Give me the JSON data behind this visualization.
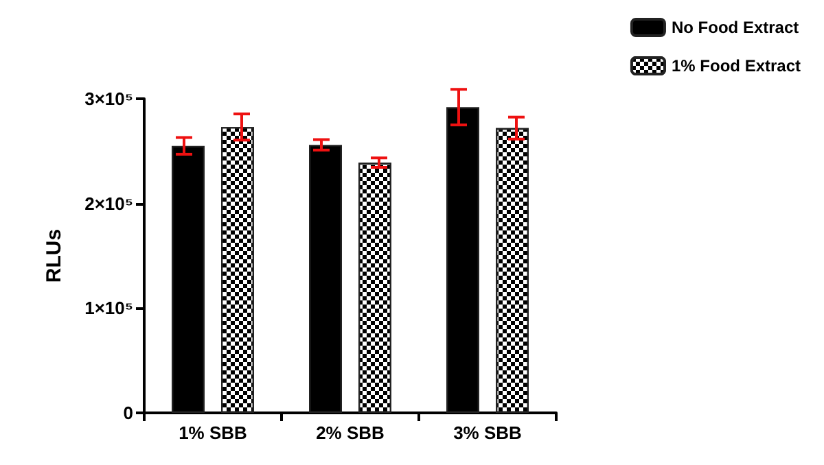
{
  "chart_data": {
    "type": "bar",
    "ylabel": "RLUs",
    "categories": [
      "1% SBB",
      "2% SBB",
      "3% SBB"
    ],
    "series": [
      {
        "name": "No Food Extract",
        "color": "#000000",
        "values": [
          255000,
          256000,
          292000
        ],
        "errors": [
          8000,
          5000,
          17000
        ]
      },
      {
        "name": "1% Food Extract",
        "color": "#000000",
        "values": [
          273000,
          239000,
          272000
        ],
        "errors": [
          12500,
          4500,
          10500
        ]
      }
    ],
    "ylim": [
      0,
      300000
    ],
    "yticks": [
      {
        "value": 0,
        "label": "0"
      },
      {
        "value": 100000,
        "label": "1×10⁵"
      },
      {
        "value": 200000,
        "label": "2×10⁵"
      },
      {
        "value": 300000,
        "label": "3×10⁵"
      }
    ],
    "grid": false,
    "legend": "top right"
  }
}
